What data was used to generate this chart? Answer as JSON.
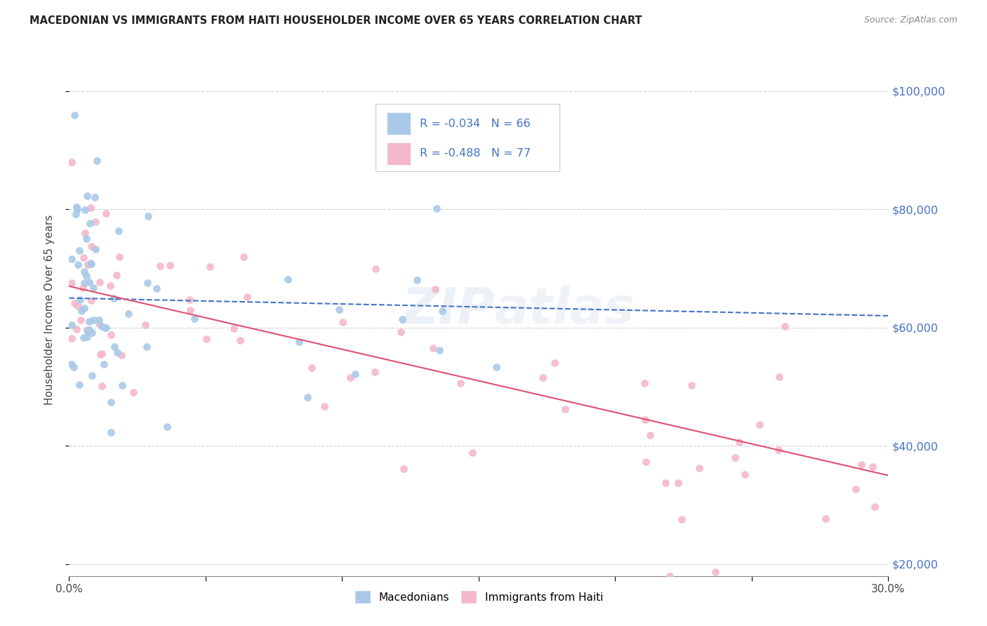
{
  "title": "MACEDONIAN VS IMMIGRANTS FROM HAITI HOUSEHOLDER INCOME OVER 65 YEARS CORRELATION CHART",
  "source": "Source: ZipAtlas.com",
  "ylabel": "Householder Income Over 65 years",
  "xlim": [
    0.0,
    0.3
  ],
  "ylim": [
    18000,
    108000
  ],
  "yticks": [
    20000,
    40000,
    60000,
    80000,
    100000
  ],
  "ytick_labels": [
    "$20,000",
    "$40,000",
    "$60,000",
    "$80,000",
    "$100,000"
  ],
  "macedonian_color": "#aac9e8",
  "haiti_color": "#f4b8ca",
  "trend_blue": "#4472c4",
  "trend_pink": "#e05070",
  "R_mac": -0.034,
  "N_mac": 66,
  "R_hai": -0.488,
  "N_hai": 77,
  "watermark": "ZIPatlas",
  "background_color": "#ffffff",
  "legend_label_mac": "Macedonians",
  "legend_label_hai": "Immigrants from Haiti",
  "label_color": "#4472c4",
  "grid_color": "#d0d0d0"
}
